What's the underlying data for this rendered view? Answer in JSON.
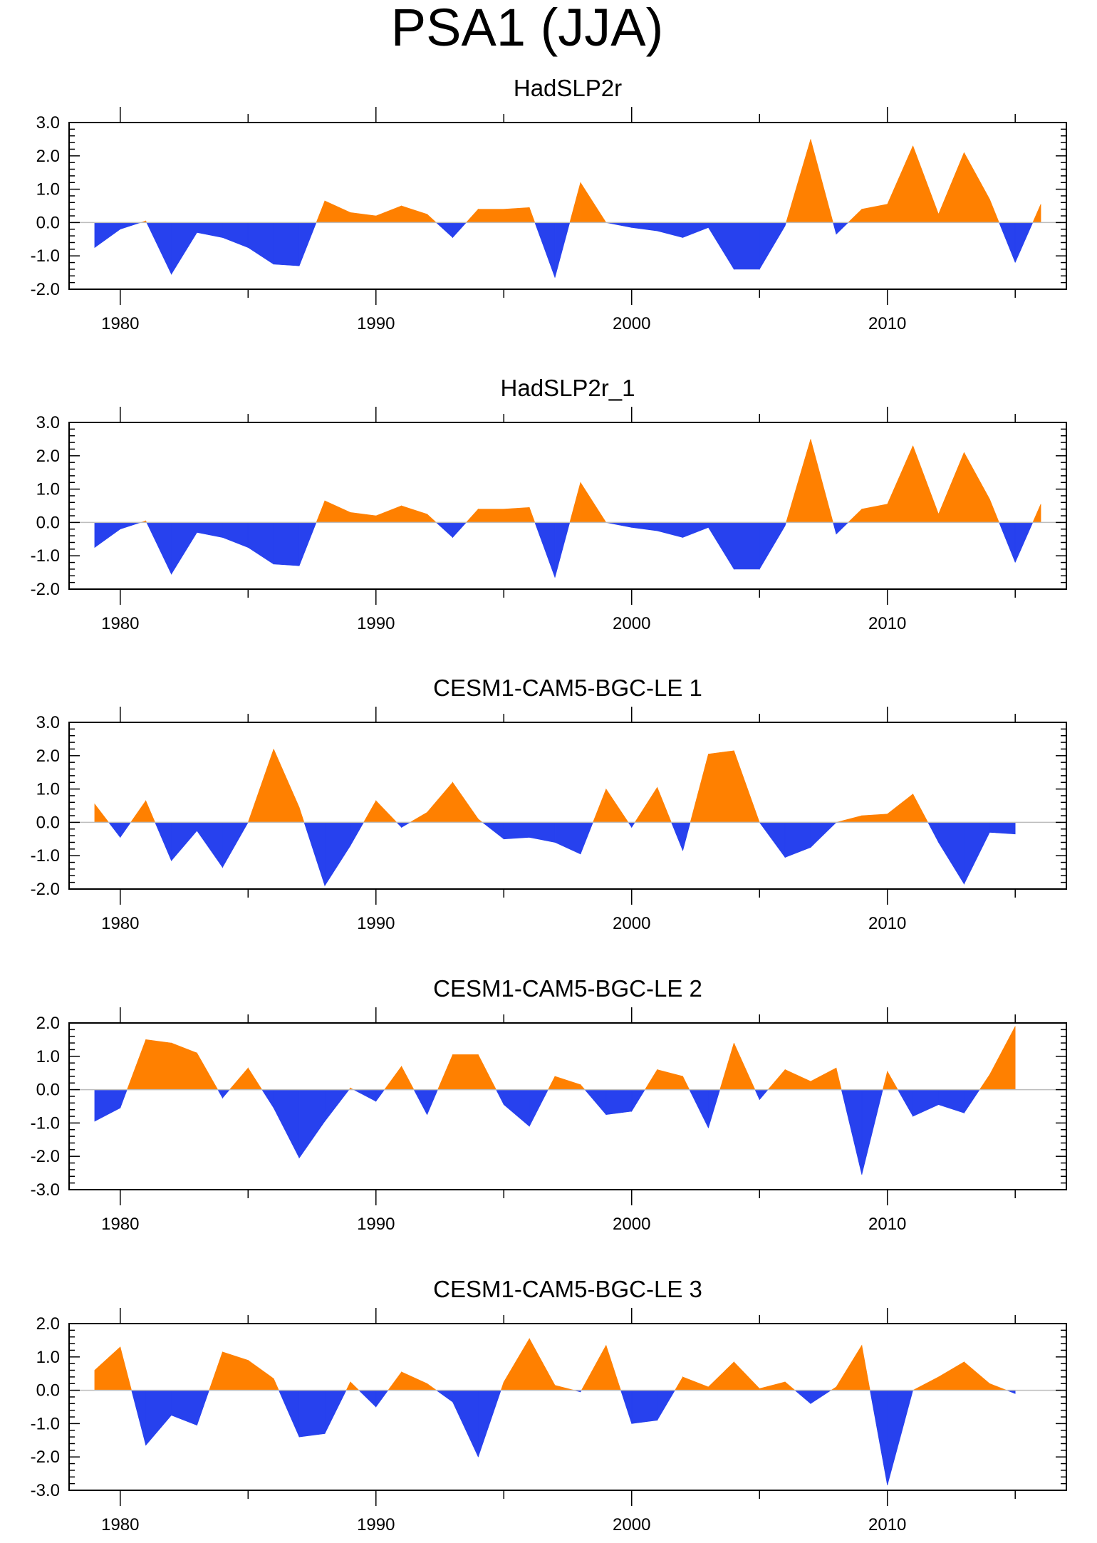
{
  "title": "PSA1 (JJA)",
  "colors": {
    "positive": "#FF8000",
    "negative": "#2741EE",
    "zero_line": "#BDBDBD",
    "axis": "#000000"
  },
  "chart_data": [
    {
      "type": "area",
      "title": "HadSLP2r",
      "ylim": [
        -2.0,
        3.0
      ],
      "yticks": [
        "3.0",
        "2.0",
        "1.0",
        "0.0",
        "-1.0",
        "-2.0"
      ],
      "xticks": [
        "1980",
        "1990",
        "2000",
        "2010"
      ],
      "xlim": [
        1978,
        2017
      ],
      "x": [
        1979,
        1980,
        1981,
        1982,
        1983,
        1984,
        1985,
        1986,
        1987,
        1988,
        1989,
        1990,
        1991,
        1992,
        1993,
        1994,
        1995,
        1996,
        1997,
        1998,
        1999,
        2000,
        2001,
        2002,
        2003,
        2004,
        2005,
        2006,
        2007,
        2008,
        2009,
        2010,
        2011,
        2012,
        2013,
        2014,
        2015,
        2016
      ],
      "values": [
        -0.75,
        -0.2,
        0.05,
        -1.55,
        -0.3,
        -0.45,
        -0.75,
        -1.25,
        -1.3,
        0.65,
        0.3,
        0.2,
        0.5,
        0.25,
        -0.45,
        0.4,
        0.4,
        0.45,
        -1.65,
        1.2,
        0.0,
        -0.15,
        -0.25,
        -0.45,
        -0.15,
        -1.4,
        -1.4,
        -0.1,
        2.5,
        -0.35,
        0.4,
        0.55,
        2.3,
        0.25,
        2.1,
        0.7,
        -1.2,
        0.55
      ]
    },
    {
      "type": "area",
      "title": "HadSLP2r_1",
      "ylim": [
        -2.0,
        3.0
      ],
      "yticks": [
        "3.0",
        "2.0",
        "1.0",
        "0.0",
        "-1.0",
        "-2.0"
      ],
      "xticks": [
        "1980",
        "1990",
        "2000",
        "2010"
      ],
      "xlim": [
        1978,
        2017
      ],
      "x": [
        1979,
        1980,
        1981,
        1982,
        1983,
        1984,
        1985,
        1986,
        1987,
        1988,
        1989,
        1990,
        1991,
        1992,
        1993,
        1994,
        1995,
        1996,
        1997,
        1998,
        1999,
        2000,
        2001,
        2002,
        2003,
        2004,
        2005,
        2006,
        2007,
        2008,
        2009,
        2010,
        2011,
        2012,
        2013,
        2014,
        2015,
        2016
      ],
      "values": [
        -0.75,
        -0.2,
        0.05,
        -1.55,
        -0.3,
        -0.45,
        -0.75,
        -1.25,
        -1.3,
        0.65,
        0.3,
        0.2,
        0.5,
        0.25,
        -0.45,
        0.4,
        0.4,
        0.45,
        -1.65,
        1.2,
        0.0,
        -0.15,
        -0.25,
        -0.45,
        -0.15,
        -1.4,
        -1.4,
        -0.1,
        2.5,
        -0.35,
        0.4,
        0.55,
        2.3,
        0.25,
        2.1,
        0.7,
        -1.2,
        0.55
      ]
    },
    {
      "type": "area",
      "title": "CESM1-CAM5-BGC-LE 1",
      "ylim": [
        -2.0,
        3.0
      ],
      "yticks": [
        "3.0",
        "2.0",
        "1.0",
        "0.0",
        "-1.0",
        "-2.0"
      ],
      "xticks": [
        "1980",
        "1990",
        "2000",
        "2010"
      ],
      "xlim": [
        1978,
        2017
      ],
      "x": [
        1979,
        1980,
        1981,
        1982,
        1983,
        1984,
        1985,
        1986,
        1987,
        1988,
        1989,
        1990,
        1991,
        1992,
        1993,
        1994,
        1995,
        1996,
        1997,
        1998,
        1999,
        2000,
        2001,
        2002,
        2003,
        2004,
        2005,
        2006,
        2007,
        2008,
        2009,
        2010,
        2011,
        2012,
        2013,
        2014,
        2015
      ],
      "values": [
        0.55,
        -0.45,
        0.65,
        -1.15,
        -0.25,
        -1.35,
        0.0,
        2.2,
        0.45,
        -1.9,
        -0.7,
        0.65,
        -0.15,
        0.3,
        1.2,
        0.1,
        -0.5,
        -0.45,
        -0.6,
        -0.95,
        1.0,
        -0.15,
        1.05,
        -0.85,
        2.05,
        2.15,
        0.0,
        -1.05,
        -0.75,
        0.0,
        0.2,
        0.25,
        0.85,
        -0.6,
        -1.85,
        -0.3,
        -0.35
      ]
    },
    {
      "type": "area",
      "title": "CESM1-CAM5-BGC-LE 2",
      "ylim": [
        -3.0,
        2.0
      ],
      "yticks": [
        "2.0",
        "1.0",
        "0.0",
        "-1.0",
        "-2.0",
        "-3.0"
      ],
      "xticks": [
        "1980",
        "1990",
        "2000",
        "2010"
      ],
      "xlim": [
        1978,
        2017
      ],
      "x": [
        1979,
        1980,
        1981,
        1982,
        1983,
        1984,
        1985,
        1986,
        1987,
        1988,
        1989,
        1990,
        1991,
        1992,
        1993,
        1994,
        1995,
        1996,
        1997,
        1998,
        1999,
        2000,
        2001,
        2002,
        2003,
        2004,
        2005,
        2006,
        2007,
        2008,
        2009,
        2010,
        2011,
        2012,
        2013,
        2014,
        2015
      ],
      "values": [
        -0.95,
        -0.55,
        1.5,
        1.4,
        1.1,
        -0.25,
        0.65,
        -0.55,
        -2.05,
        -0.95,
        0.05,
        -0.35,
        0.7,
        -0.75,
        1.05,
        1.05,
        -0.45,
        -1.1,
        0.4,
        0.15,
        -0.75,
        -0.65,
        0.6,
        0.4,
        -1.15,
        1.4,
        -0.3,
        0.6,
        0.25,
        0.65,
        -2.55,
        0.55,
        -0.8,
        -0.45,
        -0.7,
        0.45,
        1.9
      ]
    },
    {
      "type": "area",
      "title": "CESM1-CAM5-BGC-LE 3",
      "ylim": [
        -3.0,
        2.0
      ],
      "yticks": [
        "2.0",
        "1.0",
        "0.0",
        "-1.0",
        "-2.0",
        "-3.0"
      ],
      "xticks": [
        "1980",
        "1990",
        "2000",
        "2010"
      ],
      "xlim": [
        1978,
        2017
      ],
      "x": [
        1979,
        1980,
        1981,
        1982,
        1983,
        1984,
        1985,
        1986,
        1987,
        1988,
        1989,
        1990,
        1991,
        1992,
        1993,
        1994,
        1995,
        1996,
        1997,
        1998,
        1999,
        2000,
        2001,
        2002,
        2003,
        2004,
        2005,
        2006,
        2007,
        2008,
        2009,
        2010,
        2011,
        2012,
        2013,
        2014,
        2015
      ],
      "values": [
        0.6,
        1.3,
        -1.65,
        -0.75,
        -1.05,
        1.15,
        0.9,
        0.35,
        -1.4,
        -1.3,
        0.25,
        -0.5,
        0.55,
        0.2,
        -0.35,
        -2.0,
        0.25,
        1.55,
        0.15,
        -0.05,
        1.35,
        -1.0,
        -0.9,
        0.4,
        0.1,
        0.85,
        0.05,
        0.25,
        -0.4,
        0.1,
        1.35,
        -2.85,
        0.0,
        0.4,
        0.85,
        0.2,
        -0.1
      ]
    }
  ]
}
